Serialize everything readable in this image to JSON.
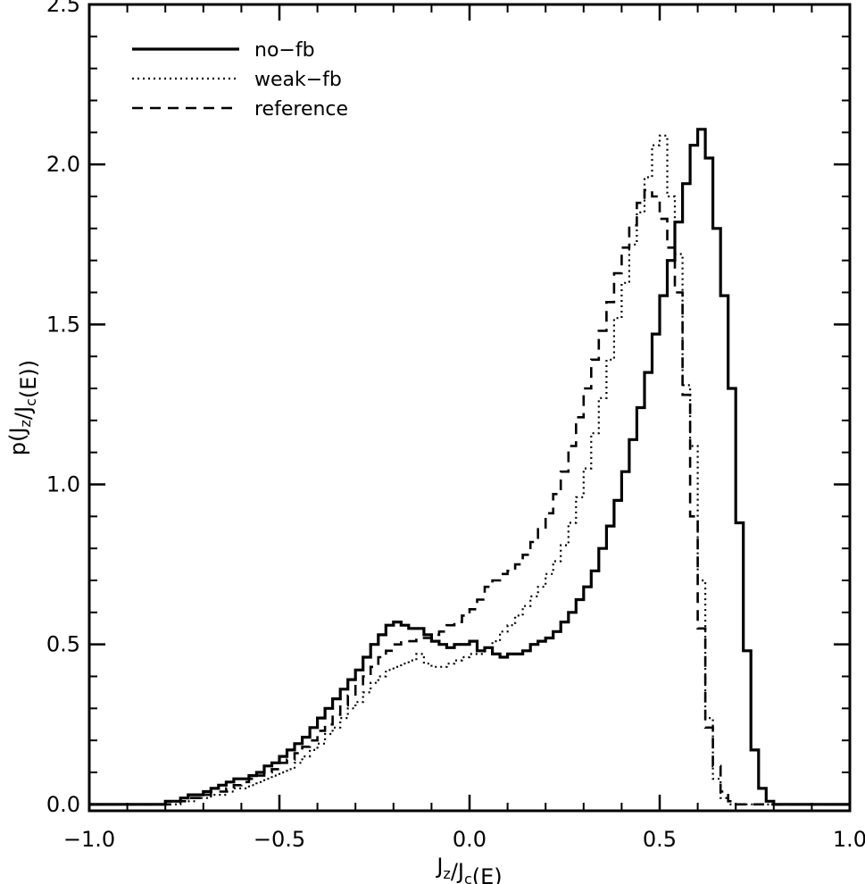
{
  "chart_data": {
    "type": "line",
    "title": "",
    "xlabel": "J_z/J_c(E)",
    "ylabel": "p(J_z/J_c(E))",
    "xlim": [
      -1.0,
      1.0
    ],
    "ylim": [
      -0.02,
      2.5
    ],
    "xticks": [
      -1.0,
      -0.5,
      0.0,
      0.5,
      1.0
    ],
    "xtick_labels": [
      "−1.0",
      "−0.5",
      "0.0",
      "0.5",
      "1.0"
    ],
    "yticks": [
      0.0,
      0.5,
      1.0,
      1.5,
      2.0,
      2.5
    ],
    "ytick_labels": [
      "0.0",
      "0.5",
      "1.0",
      "1.5",
      "2.0",
      "2.5"
    ],
    "grid": false,
    "legend_position": "top-left",
    "step_style": "histogram",
    "bin_width": 0.02,
    "bin_start": -1.0,
    "series": [
      {
        "name": "no−fb",
        "dash": "solid",
        "values": [
          0.0,
          0.0,
          0.0,
          0.0,
          0.0,
          0.0,
          0.0,
          0.0,
          0.0,
          0.0,
          0.01,
          0.01,
          0.02,
          0.03,
          0.03,
          0.04,
          0.05,
          0.06,
          0.07,
          0.08,
          0.08,
          0.09,
          0.1,
          0.12,
          0.13,
          0.15,
          0.17,
          0.19,
          0.21,
          0.24,
          0.27,
          0.3,
          0.33,
          0.36,
          0.39,
          0.42,
          0.46,
          0.5,
          0.53,
          0.56,
          0.57,
          0.56,
          0.55,
          0.55,
          0.53,
          0.51,
          0.5,
          0.49,
          0.5,
          0.5,
          0.51,
          0.48,
          0.49,
          0.47,
          0.46,
          0.47,
          0.47,
          0.48,
          0.5,
          0.51,
          0.52,
          0.54,
          0.57,
          0.6,
          0.64,
          0.68,
          0.73,
          0.8,
          0.87,
          0.95,
          1.04,
          1.14,
          1.24,
          1.35,
          1.47,
          1.59,
          1.7,
          1.82,
          1.94,
          2.06,
          2.11,
          2.02,
          1.8,
          1.59,
          1.3,
          0.88,
          0.48,
          0.17,
          0.05,
          0.01,
          0.0,
          0.0,
          0.0,
          0.0,
          0.0,
          0.0,
          0.0,
          0.0,
          0.0,
          0.0
        ]
      },
      {
        "name": "weak−fb",
        "dash": "dotted",
        "values": [
          0.0,
          0.0,
          0.0,
          0.0,
          0.0,
          0.0,
          0.0,
          0.0,
          0.0,
          0.0,
          0.0,
          0.0,
          0.01,
          0.01,
          0.02,
          0.02,
          0.03,
          0.03,
          0.04,
          0.05,
          0.05,
          0.06,
          0.07,
          0.08,
          0.09,
          0.1,
          0.11,
          0.13,
          0.15,
          0.17,
          0.19,
          0.22,
          0.24,
          0.27,
          0.3,
          0.32,
          0.35,
          0.38,
          0.4,
          0.42,
          0.43,
          0.44,
          0.45,
          0.47,
          0.44,
          0.43,
          0.43,
          0.44,
          0.45,
          0.46,
          0.47,
          0.47,
          0.49,
          0.51,
          0.54,
          0.56,
          0.59,
          0.62,
          0.65,
          0.68,
          0.72,
          0.76,
          0.81,
          0.88,
          0.96,
          1.05,
          1.16,
          1.27,
          1.39,
          1.52,
          1.63,
          1.75,
          1.85,
          1.96,
          2.06,
          2.09,
          1.9,
          1.72,
          1.31,
          1.12,
          0.7,
          0.27,
          0.08,
          0.02,
          0.0,
          0.0,
          0.0,
          0.0,
          0.0,
          0.0,
          0.0,
          0.0,
          0.0,
          0.0,
          0.0,
          0.0,
          0.0,
          0.0,
          0.0,
          0.0
        ]
      },
      {
        "name": "reference",
        "dash": "dashed",
        "values": [
          0.0,
          0.0,
          0.0,
          0.0,
          0.0,
          0.0,
          0.0,
          0.0,
          0.0,
          0.0,
          0.0,
          0.01,
          0.01,
          0.02,
          0.02,
          0.03,
          0.04,
          0.04,
          0.05,
          0.06,
          0.07,
          0.08,
          0.09,
          0.1,
          0.11,
          0.13,
          0.14,
          0.16,
          0.18,
          0.2,
          0.23,
          0.25,
          0.28,
          0.31,
          0.34,
          0.37,
          0.4,
          0.43,
          0.46,
          0.48,
          0.5,
          0.51,
          0.51,
          0.52,
          0.52,
          0.53,
          0.54,
          0.56,
          0.57,
          0.59,
          0.61,
          0.64,
          0.68,
          0.7,
          0.72,
          0.73,
          0.75,
          0.78,
          0.82,
          0.86,
          0.91,
          0.97,
          1.04,
          1.12,
          1.21,
          1.3,
          1.39,
          1.48,
          1.57,
          1.66,
          1.74,
          1.81,
          1.88,
          1.92,
          1.9,
          1.83,
          1.74,
          1.6,
          1.28,
          0.9,
          0.55,
          0.24,
          0.12,
          0.04,
          0.01,
          0.0,
          0.0,
          0.0,
          0.0,
          0.0,
          0.0,
          0.0,
          0.0,
          0.0,
          0.0,
          0.0,
          0.0,
          0.0,
          0.0,
          0.0
        ]
      }
    ]
  }
}
